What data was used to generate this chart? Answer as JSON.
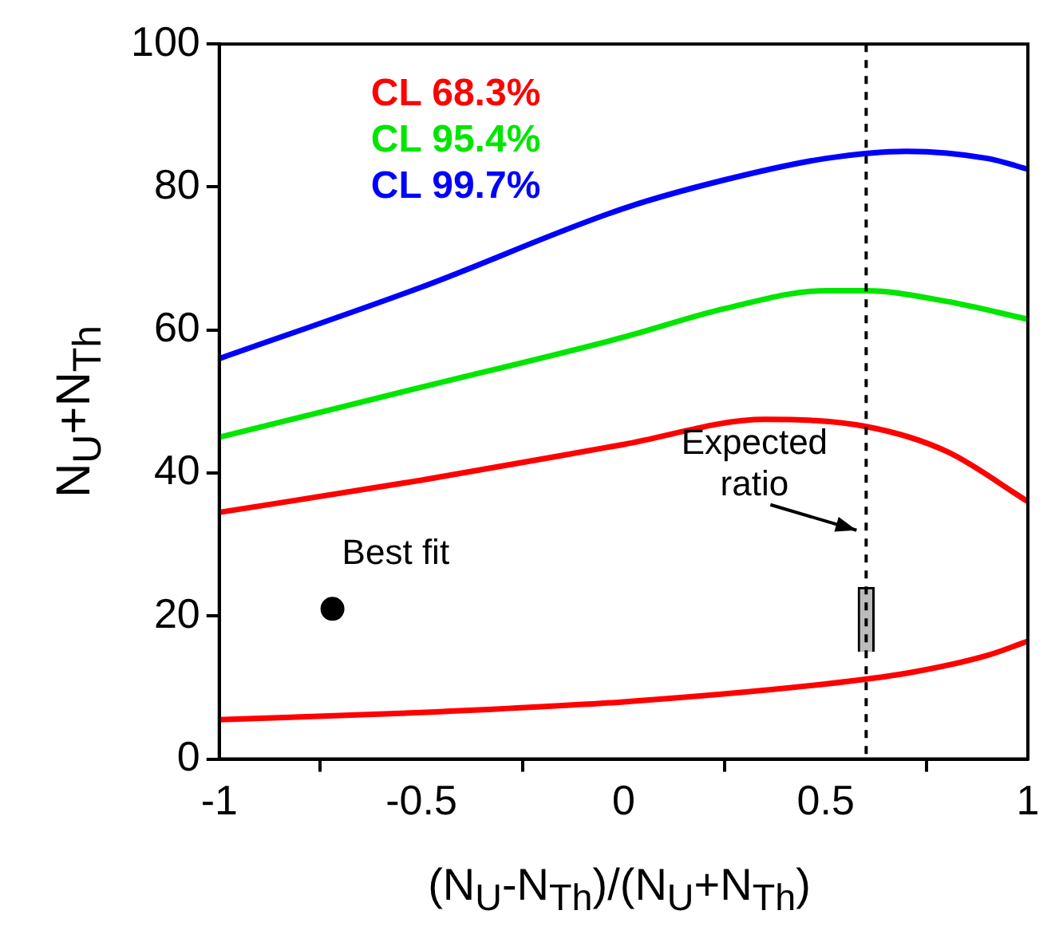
{
  "chart_data": {
    "type": "line",
    "xlabel": "(N$_{U}$-N$_{Th}$)/(N$_{U}$+N$_{Th}$)",
    "ylabel": "N$_{U}$+N$_{Th}$",
    "xlim": [
      -1,
      1
    ],
    "xticks": [
      -1,
      -0.5,
      0,
      0.5,
      1
    ],
    "ylim": [
      0,
      100
    ],
    "yticks": [
      0,
      20,
      40,
      60,
      80,
      100
    ],
    "grid": false,
    "legend": "top left",
    "marker": "none",
    "series": [
      {
        "name": "CL 68.3%",
        "color": "#ff0000",
        "x": [
          -1,
          -0.5,
          0,
          0.35,
          0.6,
          0.8,
          1
        ],
        "values": [
          34.5,
          39,
          44,
          47.5,
          46.5,
          43,
          36
        ]
      },
      {
        "name": "CL 95.4%",
        "color": "#00e600",
        "x": [
          -1,
          -0.5,
          0,
          0.25,
          0.5,
          0.6,
          0.8,
          1
        ],
        "values": [
          45,
          52,
          59,
          63,
          65.5,
          65.5,
          64,
          61.5
        ]
      },
      {
        "name": "CL 99.7%",
        "color": "#0000ff",
        "x": [
          -1,
          -0.5,
          0,
          0.25,
          0.5,
          0.7,
          0.9,
          1
        ],
        "values": [
          56,
          66,
          77,
          81,
          84,
          85,
          84,
          82.5
        ]
      },
      {
        "color": "#ff0000",
        "x": [
          -1,
          -0.5,
          0,
          0.5,
          0.7,
          0.9,
          1
        ],
        "values": [
          5.5,
          6.5,
          8,
          10.5,
          12,
          14.5,
          16.5
        ]
      },
      {
        "type": "scatter",
        "marker": "circle",
        "color": "#000000",
        "x": [
          -0.72
        ],
        "values": [
          21
        ]
      },
      {
        "type": "bar",
        "color": "#bbbbbb",
        "x": [
          0.6
        ],
        "base": [
          15
        ],
        "values": [
          9
        ]
      }
    ],
    "ref_lines": [
      {
        "axis": "x",
        "value": 0.6,
        "color": "#000000",
        "line_style": "dashed"
      }
    ],
    "annotations": [
      {
        "text": "Best fit",
        "x": -0.72,
        "y": 21
      },
      {
        "text": "Expected ratio",
        "x": 0.6,
        "y": 32
      }
    ]
  }
}
